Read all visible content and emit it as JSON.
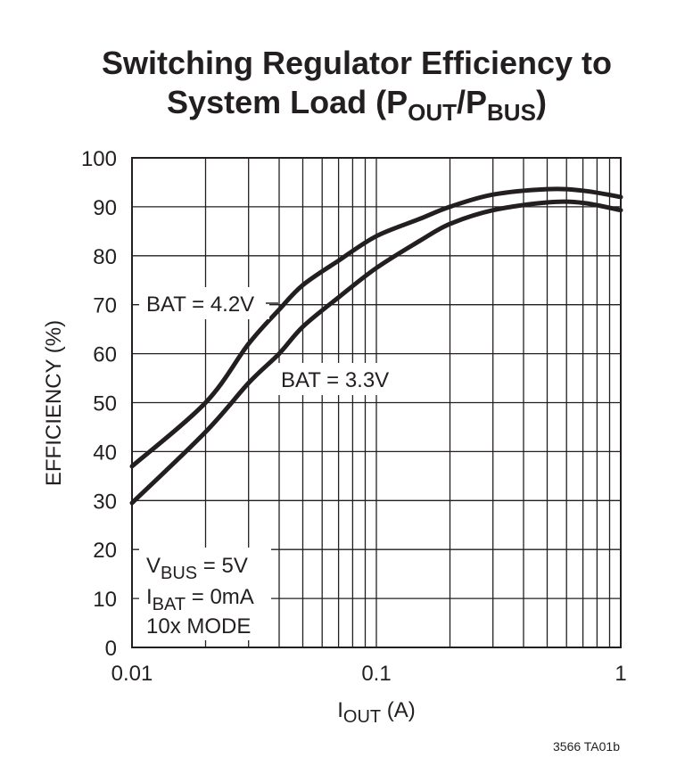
{
  "chart_data": {
    "type": "line",
    "title": {
      "line1": "Switching Regulator Efficiency to",
      "line2_prefix": "System Load (P",
      "line2_sub1": "OUT",
      "line2_mid": "/P",
      "line2_sub2": "BUS",
      "line2_suffix": ")"
    },
    "xlabel": {
      "main": "I",
      "sub": "OUT",
      "unit": " (A)"
    },
    "ylabel": "EFFICIENCY (%)",
    "xscale": "log",
    "xlim": [
      0.01,
      1
    ],
    "ylim": [
      0,
      100
    ],
    "grid": true,
    "xticks": [
      {
        "value": 0.01,
        "label": "0.01"
      },
      {
        "value": 0.1,
        "label": "0.1"
      },
      {
        "value": 1,
        "label": "1"
      }
    ],
    "yticks": [
      0,
      10,
      20,
      30,
      40,
      50,
      60,
      70,
      80,
      90,
      100
    ],
    "series": [
      {
        "name": "BAT = 4.2V",
        "label_point": {
          "x": 0.04,
          "y": 70
        },
        "points": [
          [
            0.01,
            37
          ],
          [
            0.02,
            50
          ],
          [
            0.03,
            62
          ],
          [
            0.04,
            69
          ],
          [
            0.05,
            74
          ],
          [
            0.07,
            79
          ],
          [
            0.1,
            84
          ],
          [
            0.15,
            87.5
          ],
          [
            0.2,
            90
          ],
          [
            0.3,
            92.5
          ],
          [
            0.5,
            93.6
          ],
          [
            0.7,
            93.3
          ],
          [
            1,
            92
          ]
        ]
      },
      {
        "name": "BAT = 3.3V",
        "label_point": {
          "x": 0.055,
          "y": 52
        },
        "points": [
          [
            0.01,
            29.5
          ],
          [
            0.02,
            44
          ],
          [
            0.03,
            54
          ],
          [
            0.04,
            60
          ],
          [
            0.05,
            65.5
          ],
          [
            0.07,
            71.5
          ],
          [
            0.1,
            77.5
          ],
          [
            0.15,
            83
          ],
          [
            0.2,
            86.5
          ],
          [
            0.3,
            89.3
          ],
          [
            0.5,
            90.9
          ],
          [
            0.7,
            90.8
          ],
          [
            1,
            89.3
          ]
        ]
      }
    ],
    "conditions": [
      {
        "main": "V",
        "sub": "BUS",
        "rest": " = 5V"
      },
      {
        "main": "I",
        "sub": "BAT",
        "rest": " = 0mA"
      },
      {
        "main": "10x MODE",
        "sub": "",
        "rest": ""
      }
    ],
    "figure_id": "3566 TA01b"
  }
}
